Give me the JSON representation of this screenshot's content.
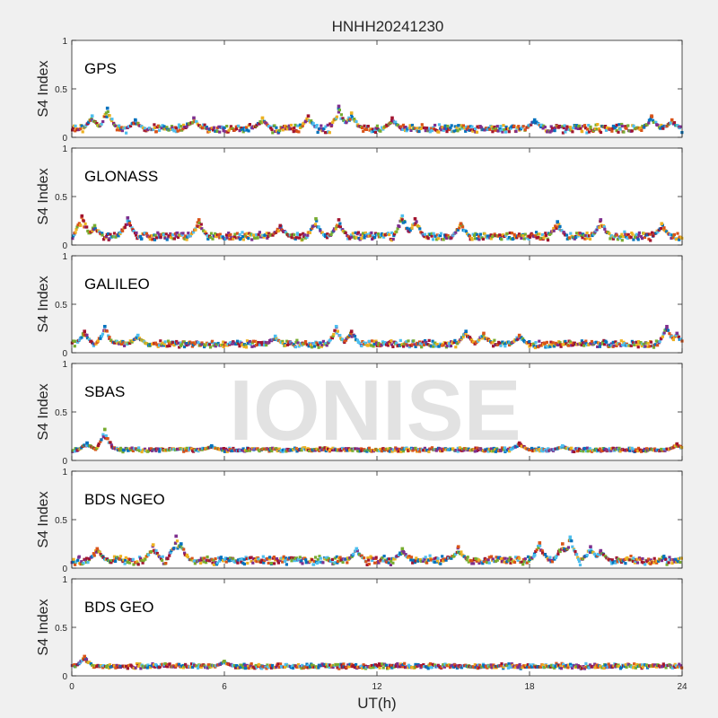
{
  "title": "HNHH20241230",
  "watermark": "IONISE",
  "xlabel": "UT(h)",
  "ylabel": "S4 Index",
  "x_ticks": [
    "0",
    "6",
    "12",
    "18",
    "24"
  ],
  "y_ticks": [
    "0",
    "0.5",
    "1"
  ],
  "colors": [
    "#0072BD",
    "#D95319",
    "#EDB120",
    "#7E2F8E",
    "#77AC30",
    "#4DBEEE",
    "#A2142F"
  ],
  "chart_data": [
    {
      "type": "scatter",
      "name": "GPS",
      "xlim": [
        0,
        24
      ],
      "ylim": [
        0,
        1
      ],
      "xlabel": "UT(h)",
      "ylabel": "S4 Index",
      "baseline": 0.09,
      "spread": 0.05,
      "peaks": [
        [
          0.8,
          0.22
        ],
        [
          1.4,
          0.3
        ],
        [
          2.5,
          0.18
        ],
        [
          4.8,
          0.2
        ],
        [
          7.5,
          0.2
        ],
        [
          9.3,
          0.22
        ],
        [
          10.5,
          0.32
        ],
        [
          11.0,
          0.25
        ],
        [
          12.6,
          0.2
        ],
        [
          18.2,
          0.18
        ],
        [
          22.8,
          0.22
        ],
        [
          23.6,
          0.18
        ]
      ],
      "series": [
        {
          "values": "mixed satellites"
        }
      ]
    },
    {
      "type": "scatter",
      "name": "GLONASS",
      "xlim": [
        0,
        24
      ],
      "ylim": [
        0,
        1
      ],
      "xlabel": "UT(h)",
      "ylabel": "S4 Index",
      "baseline": 0.09,
      "spread": 0.05,
      "peaks": [
        [
          0.4,
          0.3
        ],
        [
          0.9,
          0.2
        ],
        [
          2.2,
          0.28
        ],
        [
          5.0,
          0.26
        ],
        [
          8.2,
          0.2
        ],
        [
          9.6,
          0.27
        ],
        [
          10.5,
          0.26
        ],
        [
          13.0,
          0.3
        ],
        [
          13.5,
          0.27
        ],
        [
          15.3,
          0.22
        ],
        [
          19.1,
          0.24
        ],
        [
          20.8,
          0.26
        ],
        [
          23.2,
          0.22
        ]
      ],
      "series": [
        {
          "values": "mixed satellites"
        }
      ]
    },
    {
      "type": "scatter",
      "name": "GALILEO",
      "xlim": [
        0,
        24
      ],
      "ylim": [
        0,
        1
      ],
      "xlabel": "UT(h)",
      "ylabel": "S4 Index",
      "baseline": 0.09,
      "spread": 0.04,
      "peaks": [
        [
          0.5,
          0.22
        ],
        [
          1.3,
          0.27
        ],
        [
          2.6,
          0.18
        ],
        [
          8.0,
          0.17
        ],
        [
          10.4,
          0.27
        ],
        [
          11.0,
          0.22
        ],
        [
          15.5,
          0.22
        ],
        [
          16.2,
          0.2
        ],
        [
          17.6,
          0.18
        ],
        [
          23.4,
          0.27
        ],
        [
          23.8,
          0.2
        ]
      ],
      "series": [
        {
          "values": "mixed satellites"
        }
      ]
    },
    {
      "type": "scatter",
      "name": "SBAS",
      "xlim": [
        0,
        24
      ],
      "ylim": [
        0,
        1
      ],
      "xlabel": "UT(h)",
      "ylabel": "S4 Index",
      "baseline": 0.11,
      "spread": 0.025,
      "peaks": [
        [
          0.6,
          0.18
        ],
        [
          1.3,
          0.32
        ],
        [
          5.5,
          0.15
        ],
        [
          17.6,
          0.18
        ],
        [
          19.3,
          0.15
        ],
        [
          23.8,
          0.17
        ]
      ],
      "series": [
        {
          "values": "mixed satellites"
        }
      ]
    },
    {
      "type": "scatter",
      "name": "BDS NGEO",
      "xlim": [
        0,
        24
      ],
      "ylim": [
        0,
        1
      ],
      "xlabel": "UT(h)",
      "ylabel": "S4 Index",
      "baseline": 0.08,
      "spread": 0.05,
      "peaks": [
        [
          1.0,
          0.2
        ],
        [
          3.2,
          0.24
        ],
        [
          4.1,
          0.33
        ],
        [
          4.3,
          0.25
        ],
        [
          11.2,
          0.2
        ],
        [
          13.0,
          0.2
        ],
        [
          15.2,
          0.22
        ],
        [
          18.4,
          0.26
        ],
        [
          19.3,
          0.25
        ],
        [
          19.6,
          0.32
        ],
        [
          20.4,
          0.22
        ],
        [
          20.8,
          0.18
        ]
      ],
      "series": [
        {
          "values": "mixed satellites"
        }
      ]
    },
    {
      "type": "scatter",
      "name": "BDS GEO",
      "xlim": [
        0,
        24
      ],
      "ylim": [
        0,
        1
      ],
      "xlabel": "UT(h)",
      "ylabel": "S4 Index",
      "baseline": 0.1,
      "spread": 0.03,
      "peaks": [
        [
          0.5,
          0.2
        ],
        [
          6.0,
          0.15
        ]
      ],
      "series": [
        {
          "values": "mixed satellites"
        }
      ]
    }
  ]
}
